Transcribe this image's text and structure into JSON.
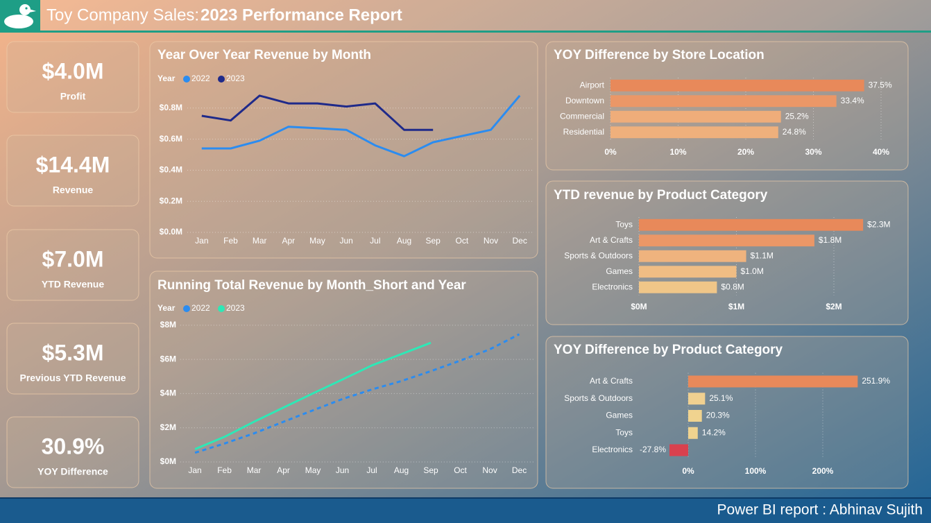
{
  "header": {
    "prefix": "Toy Company Sales:",
    "title": "2023 Performance Report"
  },
  "footer": {
    "text": "Power BI report : Abhinav Sujith"
  },
  "kpis": [
    {
      "value": "$4.0M",
      "label": "Profit"
    },
    {
      "value": "$14.4M",
      "label": "Revenue"
    },
    {
      "value": "$7.0M",
      "label": "YTD Revenue"
    },
    {
      "value": "$5.3M",
      "label": "Previous YTD Revenue"
    },
    {
      "value": "30.9%",
      "label": "YOY Difference"
    }
  ],
  "chart_data": [
    {
      "type": "line",
      "title": "Year Over Year Revenue by Month",
      "legend_title": "Year",
      "categories": [
        "Jan",
        "Feb",
        "Mar",
        "Apr",
        "May",
        "Jun",
        "Jul",
        "Aug",
        "Sep",
        "Oct",
        "Nov",
        "Dec"
      ],
      "series": [
        {
          "name": "2022",
          "color": "#2b8cf0",
          "values": [
            0.54,
            0.54,
            0.59,
            0.68,
            0.67,
            0.66,
            0.56,
            0.49,
            0.58,
            0.62,
            0.66,
            0.88
          ]
        },
        {
          "name": "2023",
          "color": "#1f2a8a",
          "values": [
            0.75,
            0.72,
            0.88,
            0.83,
            0.83,
            0.81,
            0.83,
            0.66,
            0.66,
            null,
            null,
            null
          ]
        }
      ],
      "ylim": [
        0,
        1.0
      ],
      "yticks": [
        {
          "value": 0,
          "label": "$0.0M"
        },
        {
          "value": 0.2,
          "label": "$0.2M"
        },
        {
          "value": 0.4,
          "label": "$0.4M"
        },
        {
          "value": 0.6,
          "label": "$0.6M"
        },
        {
          "value": 0.8,
          "label": "$0.8M"
        }
      ],
      "grid": true
    },
    {
      "type": "line",
      "title": "Running Total Revenue by Month_Short and Year",
      "legend_title": "Year",
      "categories": [
        "Jan",
        "Feb",
        "Mar",
        "Apr",
        "May",
        "Jun",
        "Jul",
        "Aug",
        "Sep",
        "Oct",
        "Nov",
        "Dec"
      ],
      "series": [
        {
          "name": "2022",
          "color": "#2b8cf0",
          "line_style": "dashed",
          "values": [
            0.54,
            1.08,
            1.67,
            2.35,
            3.02,
            3.68,
            4.24,
            4.73,
            5.31,
            5.93,
            6.59,
            7.47
          ]
        },
        {
          "name": "2023",
          "color": "#2ee8b6",
          "line_style": "solid",
          "values": [
            0.75,
            1.47,
            2.35,
            3.18,
            4.01,
            4.82,
            5.65,
            6.31,
            6.97,
            null,
            null,
            null
          ]
        }
      ],
      "ylim": [
        0,
        8.4
      ],
      "yticks": [
        {
          "value": 0,
          "label": "$0M"
        },
        {
          "value": 2,
          "label": "$2M"
        },
        {
          "value": 4,
          "label": "$4M"
        },
        {
          "value": 6,
          "label": "$6M"
        },
        {
          "value": 8,
          "label": "$8M"
        }
      ],
      "grid": true
    },
    {
      "type": "hbar",
      "title": "YOY Difference by Store Location",
      "categories": [
        "Airport",
        "Downtown",
        "Commercial",
        "Residential"
      ],
      "values": [
        37.5,
        33.4,
        25.2,
        24.8
      ],
      "value_labels": [
        "37.5%",
        "33.4%",
        "25.2%",
        "24.8%"
      ],
      "colors": [
        "#e8895a",
        "#eb9767",
        "#efad7a",
        "#efb07c"
      ],
      "xlim": [
        0,
        40
      ],
      "xticks": [
        {
          "value": 0,
          "label": "0%"
        },
        {
          "value": 10,
          "label": "10%"
        },
        {
          "value": 20,
          "label": "20%"
        },
        {
          "value": 30,
          "label": "30%"
        },
        {
          "value": 40,
          "label": "40%"
        }
      ],
      "grid": true
    },
    {
      "type": "hbar",
      "title": "YTD revenue by Product Category",
      "categories": [
        "Toys",
        "Art & Crafts",
        "Sports & Outdoors",
        "Games",
        "Electronics"
      ],
      "values": [
        2.3,
        1.8,
        1.1,
        1.0,
        0.8
      ],
      "value_labels": [
        "$2.3M",
        "$1.8M",
        "$1.1M",
        "$1.0M",
        "$0.8M"
      ],
      "colors": [
        "#e8895a",
        "#eb9767",
        "#efb37e",
        "#f0bd84",
        "#f0c688"
      ],
      "xlim": [
        0,
        2.7
      ],
      "xticks": [
        {
          "value": 0,
          "label": "$0M"
        },
        {
          "value": 1,
          "label": "$1M"
        },
        {
          "value": 2,
          "label": "$2M"
        }
      ],
      "grid": true
    },
    {
      "type": "hbar",
      "title": "YOY Difference by Product Category",
      "categories": [
        "Art & Crafts",
        "Sports & Outdoors",
        "Games",
        "Toys",
        "Electronics"
      ],
      "values": [
        251.9,
        25.1,
        20.3,
        14.2,
        -27.8
      ],
      "value_labels": [
        "251.9%",
        "25.1%",
        "20.3%",
        "14.2%",
        "-27.8%"
      ],
      "colors": [
        "#e8895a",
        "#f0d090",
        "#f0d38f",
        "#f0d38f",
        "#d9414e"
      ],
      "xlim": [
        -50,
        300
      ],
      "xticks": [
        {
          "value": 0,
          "label": "0%"
        },
        {
          "value": 100,
          "label": "100%"
        },
        {
          "value": 200,
          "label": "200%"
        }
      ],
      "grid": true
    }
  ]
}
